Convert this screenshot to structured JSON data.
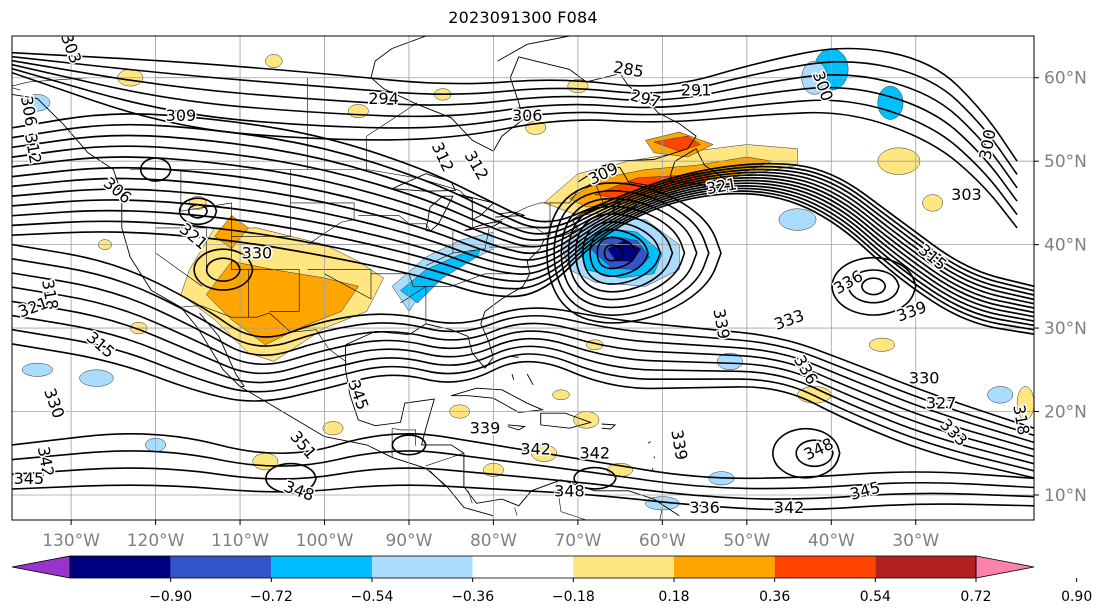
{
  "title": "2023091300 F084",
  "map": {
    "lon_min": -137,
    "lon_max": -16,
    "lat_min": 7,
    "lat_max": 65,
    "lon_ticks": [
      {
        "lon": -130,
        "label": "130°W"
      },
      {
        "lon": -120,
        "label": "120°W"
      },
      {
        "lon": -110,
        "label": "110°W"
      },
      {
        "lon": -100,
        "label": "100°W"
      },
      {
        "lon": -90,
        "label": "90°W"
      },
      {
        "lon": -80,
        "label": "80°W"
      },
      {
        "lon": -70,
        "label": "70°W"
      },
      {
        "lon": -60,
        "label": "60°W"
      },
      {
        "lon": -50,
        "label": "50°W"
      },
      {
        "lon": -40,
        "label": "40°W"
      },
      {
        "lon": -30,
        "label": "30°W"
      }
    ],
    "lat_ticks": [
      {
        "lat": 60,
        "label": "60°N"
      },
      {
        "lat": 50,
        "label": "50°N"
      },
      {
        "lat": 40,
        "label": "40°N"
      },
      {
        "lat": 30,
        "label": "30°N"
      },
      {
        "lat": 20,
        "label": "20°N"
      },
      {
        "lat": 10,
        "label": "10°N"
      }
    ],
    "grid": true,
    "tick_label_color": "#808080"
  },
  "colorbar": {
    "colors": [
      "#9933cc",
      "#000080",
      "#3355cc",
      "#00bfff",
      "#aadcff",
      "#ffffff",
      "#ffe680",
      "#ffa500",
      "#ff4500",
      "#b22222",
      "#ff80aa"
    ],
    "tick_labels": [
      "−0.90",
      "−0.72",
      "−0.54",
      "−0.36",
      "−0.18",
      "0.18",
      "0.36",
      "0.54",
      "0.72",
      "0.90"
    ],
    "extend": "both"
  },
  "contour_labels": [
    {
      "text": "303",
      "lon": -130,
      "lat": 63.5,
      "rot": -70
    },
    {
      "text": "306",
      "lon": -135,
      "lat": 56,
      "rot": -80
    },
    {
      "text": "312",
      "lon": -134.5,
      "lat": 51.5,
      "rot": -80
    },
    {
      "text": "309",
      "lon": -117,
      "lat": 55.5,
      "rot": 0
    },
    {
      "text": "306",
      "lon": -124.5,
      "lat": 46.5,
      "rot": -40
    },
    {
      "text": "294",
      "lon": -93,
      "lat": 57.5,
      "rot": 0
    },
    {
      "text": "306",
      "lon": -76,
      "lat": 55.5,
      "rot": 0
    },
    {
      "text": "285",
      "lon": -64,
      "lat": 61,
      "rot": -10
    },
    {
      "text": "297",
      "lon": -62,
      "lat": 57.5,
      "rot": -15
    },
    {
      "text": "291",
      "lon": -56,
      "lat": 58.5,
      "rot": 0
    },
    {
      "text": "300",
      "lon": -41,
      "lat": 59,
      "rot": -70
    },
    {
      "text": "300",
      "lon": -21.5,
      "lat": 52,
      "rot": 80
    },
    {
      "text": "303",
      "lon": -24,
      "lat": 46,
      "rot": 0
    },
    {
      "text": "312",
      "lon": -86,
      "lat": 50.5,
      "rot": -65
    },
    {
      "text": "312",
      "lon": -82,
      "lat": 49.5,
      "rot": -60
    },
    {
      "text": "309",
      "lon": -67,
      "lat": 48.5,
      "rot": 25
    },
    {
      "text": "321",
      "lon": -53,
      "lat": 47,
      "rot": 10
    },
    {
      "text": "321",
      "lon": -115.5,
      "lat": 41,
      "rot": -40
    },
    {
      "text": "330",
      "lon": -108,
      "lat": 39,
      "rot": 0
    },
    {
      "text": "318",
      "lon": -132.5,
      "lat": 34,
      "rot": -80
    },
    {
      "text": "321",
      "lon": -134.5,
      "lat": 32.5,
      "rot": 20
    },
    {
      "text": "315",
      "lon": -126.5,
      "lat": 28,
      "rot": -40
    },
    {
      "text": "330",
      "lon": -132,
      "lat": 21,
      "rot": -70
    },
    {
      "text": "342",
      "lon": -133,
      "lat": 14,
      "rot": -80
    },
    {
      "text": "345",
      "lon": -135,
      "lat": 12,
      "rot": 0
    },
    {
      "text": "345",
      "lon": -96,
      "lat": 22,
      "rot": -70
    },
    {
      "text": "351",
      "lon": -102.5,
      "lat": 16,
      "rot": -50
    },
    {
      "text": "348",
      "lon": -103,
      "lat": 10.5,
      "rot": -20
    },
    {
      "text": "339",
      "lon": -81,
      "lat": 18,
      "rot": 0
    },
    {
      "text": "342",
      "lon": -75,
      "lat": 15.5,
      "rot": 0
    },
    {
      "text": "342",
      "lon": -68,
      "lat": 15,
      "rot": 0
    },
    {
      "text": "348",
      "lon": -71,
      "lat": 10.5,
      "rot": 0
    },
    {
      "text": "339",
      "lon": -58,
      "lat": 16,
      "rot": -80
    },
    {
      "text": "339",
      "lon": -53,
      "lat": 30.5,
      "rot": -80
    },
    {
      "text": "333",
      "lon": -45,
      "lat": 31,
      "rot": 20
    },
    {
      "text": "336",
      "lon": -38,
      "lat": 35.5,
      "rot": 30
    },
    {
      "text": "339",
      "lon": -30.5,
      "lat": 32,
      "rot": 20
    },
    {
      "text": "315",
      "lon": -28,
      "lat": 38.5,
      "rot": -40
    },
    {
      "text": "336",
      "lon": -43,
      "lat": 25,
      "rot": -60
    },
    {
      "text": "330",
      "lon": -29,
      "lat": 24,
      "rot": 0
    },
    {
      "text": "327",
      "lon": -27,
      "lat": 21,
      "rot": 0
    },
    {
      "text": "333",
      "lon": -25.5,
      "lat": 17.5,
      "rot": -45
    },
    {
      "text": "348",
      "lon": -41.5,
      "lat": 15.5,
      "rot": 25
    },
    {
      "text": "345",
      "lon": -36,
      "lat": 10.5,
      "rot": 15
    },
    {
      "text": "342",
      "lon": -45,
      "lat": 8.5,
      "rot": 0
    },
    {
      "text": "336",
      "lon": -55,
      "lat": 8.5,
      "rot": 0
    },
    {
      "text": "318",
      "lon": -17.5,
      "lat": 19,
      "rot": -80
    }
  ]
}
